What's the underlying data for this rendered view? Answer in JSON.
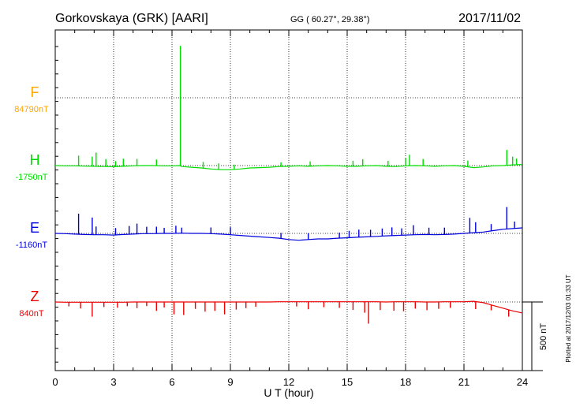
{
  "header": {
    "station": "Gorkovskaya (GRK)  [AARI]",
    "coords": "GG ( 60.27°,  29.38°)",
    "date": "2017/11/02"
  },
  "side_note": "Plotted at 2017/12/03 01:33 UT",
  "chart_data": {
    "type": "line",
    "xlabel": "U T (hour)",
    "xlim": [
      0,
      24
    ],
    "xticks": [
      0,
      3,
      6,
      9,
      12,
      15,
      18,
      21,
      24
    ],
    "scale_bar": "500 nT",
    "series": [
      {
        "name": "F",
        "baseline": "84790nT",
        "color": "#ffa500",
        "points": []
      },
      {
        "name": "H",
        "baseline": "-1750nT",
        "color": "#00dd00",
        "points": [
          [
            0,
            -1750
          ],
          [
            0.5,
            -1752
          ],
          [
            1.0,
            -1752
          ],
          [
            1.5,
            -1754
          ],
          [
            2.0,
            -1755
          ],
          [
            2.5,
            -1757
          ],
          [
            3.0,
            -1758
          ],
          [
            3.5,
            -1755
          ],
          [
            4.0,
            -1752
          ],
          [
            4.5,
            -1750
          ],
          [
            5.0,
            -1750
          ],
          [
            5.5,
            -1752
          ],
          [
            6.0,
            -1752
          ],
          [
            6.4,
            -1750
          ],
          [
            6.5,
            -1757
          ],
          [
            7.0,
            -1762
          ],
          [
            7.5,
            -1767
          ],
          [
            8.0,
            -1775
          ],
          [
            8.5,
            -1780
          ],
          [
            9.0,
            -1780
          ],
          [
            9.5,
            -1775
          ],
          [
            10.0,
            -1767
          ],
          [
            10.5,
            -1765
          ],
          [
            11.0,
            -1762
          ],
          [
            11.5,
            -1757
          ],
          [
            12.0,
            -1755
          ],
          [
            12.5,
            -1752
          ],
          [
            13.0,
            -1755
          ],
          [
            13.5,
            -1752
          ],
          [
            14.0,
            -1750
          ],
          [
            14.5,
            -1752
          ],
          [
            15.0,
            -1755
          ],
          [
            15.5,
            -1755
          ],
          [
            16.0,
            -1752
          ],
          [
            16.5,
            -1750
          ],
          [
            17.0,
            -1755
          ],
          [
            17.5,
            -1757
          ],
          [
            18.0,
            -1752
          ],
          [
            18.5,
            -1750
          ],
          [
            19.0,
            -1752
          ],
          [
            19.5,
            -1755
          ],
          [
            20.0,
            -1752
          ],
          [
            20.5,
            -1750
          ],
          [
            21.0,
            -1755
          ],
          [
            21.5,
            -1765
          ],
          [
            22.0,
            -1760
          ],
          [
            22.5,
            -1752
          ],
          [
            23.0,
            -1750
          ],
          [
            23.5,
            -1745
          ],
          [
            24.0,
            -1742
          ]
        ],
        "spikes": [
          [
            1.2,
            75
          ],
          [
            1.9,
            70
          ],
          [
            2.1,
            100
          ],
          [
            2.6,
            55
          ],
          [
            3.1,
            40
          ],
          [
            3.5,
            55
          ],
          [
            4.2,
            50
          ],
          [
            5.2,
            45
          ],
          [
            6.43,
            875
          ],
          [
            7.6,
            45
          ],
          [
            8.4,
            45
          ],
          [
            9.2,
            35
          ],
          [
            11.6,
            30
          ],
          [
            13.1,
            35
          ],
          [
            15.3,
            40
          ],
          [
            15.8,
            50
          ],
          [
            17.1,
            40
          ],
          [
            18.0,
            55
          ],
          [
            18.2,
            80
          ],
          [
            18.9,
            50
          ],
          [
            21.2,
            45
          ],
          [
            23.2,
            112
          ],
          [
            23.5,
            60
          ],
          [
            23.7,
            45
          ]
        ]
      },
      {
        "name": "E",
        "baseline": "-1160nT",
        "color": "#0000dd",
        "points": [
          [
            0,
            -1160
          ],
          [
            0.5,
            -1162
          ],
          [
            1.0,
            -1165
          ],
          [
            1.5,
            -1168
          ],
          [
            2.0,
            -1170
          ],
          [
            2.5,
            -1170
          ],
          [
            3.0,
            -1172
          ],
          [
            3.5,
            -1168
          ],
          [
            4.0,
            -1165
          ],
          [
            4.5,
            -1162
          ],
          [
            5.0,
            -1162
          ],
          [
            5.5,
            -1160
          ],
          [
            6.0,
            -1160
          ],
          [
            6.5,
            -1158
          ],
          [
            7.0,
            -1160
          ],
          [
            7.5,
            -1160
          ],
          [
            8.0,
            -1162
          ],
          [
            8.5,
            -1165
          ],
          [
            9.0,
            -1170
          ],
          [
            9.5,
            -1175
          ],
          [
            10.0,
            -1180
          ],
          [
            10.5,
            -1185
          ],
          [
            11.0,
            -1190
          ],
          [
            11.5,
            -1195
          ],
          [
            12.0,
            -1205
          ],
          [
            12.5,
            -1210
          ],
          [
            13.0,
            -1205
          ],
          [
            13.5,
            -1200
          ],
          [
            14.0,
            -1200
          ],
          [
            14.5,
            -1195
          ],
          [
            15.0,
            -1192
          ],
          [
            15.5,
            -1188
          ],
          [
            16.0,
            -1185
          ],
          [
            16.5,
            -1182
          ],
          [
            17.0,
            -1178
          ],
          [
            17.5,
            -1175
          ],
          [
            18.0,
            -1172
          ],
          [
            18.5,
            -1170
          ],
          [
            19.0,
            -1168
          ],
          [
            19.5,
            -1170
          ],
          [
            20.0,
            -1168
          ],
          [
            20.5,
            -1165
          ],
          [
            21.0,
            -1160
          ],
          [
            21.5,
            -1155
          ],
          [
            22.0,
            -1150
          ],
          [
            22.5,
            -1140
          ],
          [
            23.0,
            -1130
          ],
          [
            23.5,
            -1125
          ],
          [
            24.0,
            -1120
          ]
        ],
        "spikes": [
          [
            1.2,
            150
          ],
          [
            1.9,
            125
          ],
          [
            2.1,
            60
          ],
          [
            3.1,
            50
          ],
          [
            3.8,
            60
          ],
          [
            4.2,
            75
          ],
          [
            4.7,
            50
          ],
          [
            5.2,
            50
          ],
          [
            5.6,
            40
          ],
          [
            6.2,
            55
          ],
          [
            6.5,
            40
          ],
          [
            8.0,
            45
          ],
          [
            9.0,
            55
          ],
          [
            11.6,
            40
          ],
          [
            13.0,
            45
          ],
          [
            14.6,
            40
          ],
          [
            15.1,
            50
          ],
          [
            15.6,
            55
          ],
          [
            16.2,
            50
          ],
          [
            16.8,
            55
          ],
          [
            17.3,
            60
          ],
          [
            17.8,
            50
          ],
          [
            18.4,
            70
          ],
          [
            19.2,
            50
          ],
          [
            20.0,
            50
          ],
          [
            21.3,
            110
          ],
          [
            21.6,
            75
          ],
          [
            22.4,
            50
          ],
          [
            23.2,
            160
          ],
          [
            23.6,
            50
          ]
        ]
      },
      {
        "name": "Z",
        "baseline": "840nT",
        "color": "#ee0000",
        "points": [
          [
            0,
            840
          ],
          [
            0.5,
            838
          ],
          [
            1.0,
            838
          ],
          [
            1.5,
            838
          ],
          [
            2.0,
            838
          ],
          [
            2.5,
            838
          ],
          [
            3.0,
            838
          ],
          [
            3.5,
            838
          ],
          [
            4.0,
            840
          ],
          [
            4.5,
            840
          ],
          [
            5.0,
            840
          ],
          [
            5.5,
            840
          ],
          [
            6.0,
            840
          ],
          [
            6.5,
            840
          ],
          [
            7.0,
            840
          ],
          [
            7.5,
            840
          ],
          [
            8.0,
            840
          ],
          [
            8.5,
            840
          ],
          [
            9.0,
            840
          ],
          [
            9.5,
            840
          ],
          [
            10.0,
            840
          ],
          [
            10.5,
            840
          ],
          [
            11.0,
            840
          ],
          [
            11.5,
            842
          ],
          [
            12.0,
            842
          ],
          [
            12.5,
            842
          ],
          [
            13.0,
            842
          ],
          [
            13.5,
            842
          ],
          [
            14.0,
            842
          ],
          [
            14.5,
            842
          ],
          [
            15.0,
            842
          ],
          [
            15.5,
            842
          ],
          [
            16.0,
            842
          ],
          [
            16.5,
            842
          ],
          [
            17.0,
            840
          ],
          [
            17.5,
            842
          ],
          [
            18.0,
            842
          ],
          [
            18.5,
            842
          ],
          [
            19.0,
            840
          ],
          [
            19.5,
            840
          ],
          [
            20.0,
            842
          ],
          [
            20.5,
            842
          ],
          [
            21.0,
            842
          ],
          [
            21.5,
            845
          ],
          [
            22.0,
            835
          ],
          [
            22.5,
            815
          ],
          [
            23.0,
            795
          ],
          [
            23.5,
            775
          ],
          [
            24.0,
            760
          ]
        ],
        "spikes": [
          [
            0.7,
            -30
          ],
          [
            1.3,
            -45
          ],
          [
            1.9,
            -105
          ],
          [
            2.5,
            -35
          ],
          [
            3.2,
            -40
          ],
          [
            3.7,
            -30
          ],
          [
            4.2,
            -45
          ],
          [
            4.7,
            -30
          ],
          [
            5.2,
            -65
          ],
          [
            5.6,
            -40
          ],
          [
            6.1,
            -90
          ],
          [
            6.6,
            -95
          ],
          [
            7.2,
            -50
          ],
          [
            7.7,
            -70
          ],
          [
            8.2,
            -65
          ],
          [
            8.7,
            -90
          ],
          [
            9.3,
            -55
          ],
          [
            9.8,
            -45
          ],
          [
            10.3,
            -35
          ],
          [
            12.4,
            -35
          ],
          [
            13.0,
            -55
          ],
          [
            13.8,
            -40
          ],
          [
            14.6,
            -45
          ],
          [
            15.3,
            -60
          ],
          [
            15.9,
            -80
          ],
          [
            16.1,
            -160
          ],
          [
            16.7,
            -60
          ],
          [
            17.4,
            -65
          ],
          [
            17.9,
            -70
          ],
          [
            18.5,
            -50
          ],
          [
            19.1,
            -60
          ],
          [
            19.7,
            -50
          ],
          [
            20.3,
            -45
          ],
          [
            21.6,
            -55
          ],
          [
            22.4,
            -40
          ],
          [
            23.3,
            -50
          ]
        ]
      }
    ]
  }
}
